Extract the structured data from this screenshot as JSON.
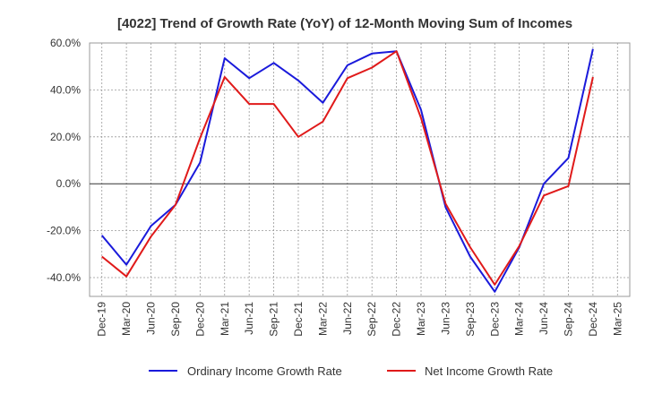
{
  "chart_data": {
    "type": "line",
    "title": "[4022]  Trend of Growth Rate (YoY) of 12-Month Moving Sum of Incomes",
    "xlabel": "",
    "ylabel": "",
    "ylim": [
      -48,
      60
    ],
    "y_ticks": [
      60,
      40,
      20,
      0,
      -20,
      -40
    ],
    "y_tick_labels": [
      "60.0%",
      "40.0%",
      "20.0%",
      "0.0%",
      "-20.0%",
      "-40.0%"
    ],
    "categories": [
      "Dec-19",
      "Mar-20",
      "Jun-20",
      "Sep-20",
      "Dec-20",
      "Mar-21",
      "Jun-21",
      "Sep-21",
      "Dec-21",
      "Mar-22",
      "Jun-22",
      "Sep-22",
      "Dec-22",
      "Mar-23",
      "Jun-23",
      "Sep-23",
      "Dec-23",
      "Mar-24",
      "Jun-24",
      "Sep-24",
      "Dec-24",
      "Mar-25"
    ],
    "grid": true,
    "legend_position": "bottom",
    "series": [
      {
        "name": "Ordinary Income Growth Rate",
        "color": "#1a1adb",
        "values": [
          -22,
          -34.5,
          -18,
          -9,
          9,
          53.5,
          45,
          51.5,
          44,
          34.5,
          50.5,
          55.5,
          56.5,
          31.5,
          -10,
          -31,
          -46,
          -27,
          0,
          11,
          57.5,
          null
        ]
      },
      {
        "name": "Net Income Growth Rate",
        "color": "#e01a1a",
        "values": [
          -31,
          -39.5,
          -22.5,
          -9,
          19.5,
          45.5,
          34,
          34,
          20,
          26.5,
          45,
          49.5,
          56.5,
          28,
          -8.5,
          -27,
          -43,
          -26.5,
          -5,
          -1,
          45.5,
          null
        ]
      }
    ]
  }
}
